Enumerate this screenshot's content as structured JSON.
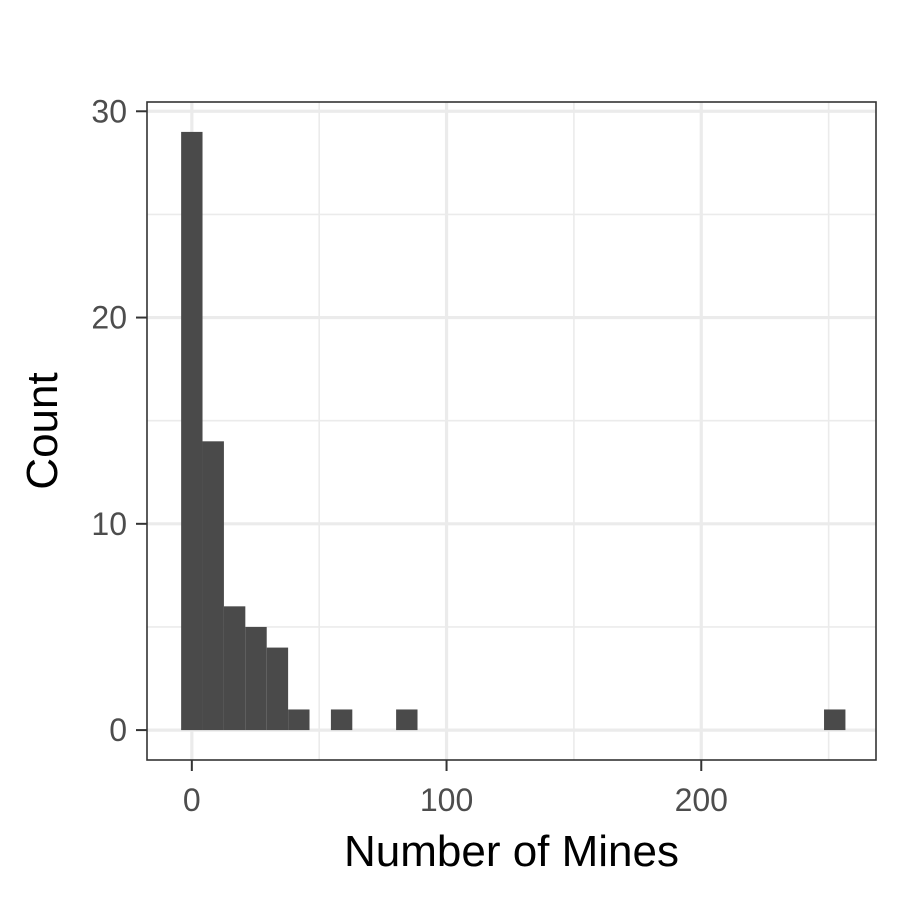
{
  "chart_data": {
    "type": "bar",
    "subtype": "histogram",
    "xlabel": "Number of Mines",
    "ylabel": "Count",
    "xlim": [
      -17.6,
      268.6
    ],
    "ylim": [
      -1.45,
      30.45
    ],
    "x_ticks": [
      0,
      100,
      200
    ],
    "y_ticks": [
      0,
      10,
      20,
      30
    ],
    "bin_width": 8.4,
    "bins": [
      {
        "start": -4.2,
        "end": 4.2,
        "count": 29
      },
      {
        "start": 4.2,
        "end": 12.6,
        "count": 14
      },
      {
        "start": 12.6,
        "end": 21.0,
        "count": 6
      },
      {
        "start": 21.0,
        "end": 29.4,
        "count": 5
      },
      {
        "start": 29.4,
        "end": 37.8,
        "count": 4
      },
      {
        "start": 37.8,
        "end": 46.2,
        "count": 1
      },
      {
        "start": 54.6,
        "end": 63.0,
        "count": 1
      },
      {
        "start": 80.2,
        "end": 88.6,
        "count": 1
      },
      {
        "start": 248.2,
        "end": 256.6,
        "count": 1
      }
    ],
    "grid": true,
    "bar_color": "#4a4a4a",
    "grid_color": "#ebebeb",
    "panel_border_color": "#333333"
  }
}
